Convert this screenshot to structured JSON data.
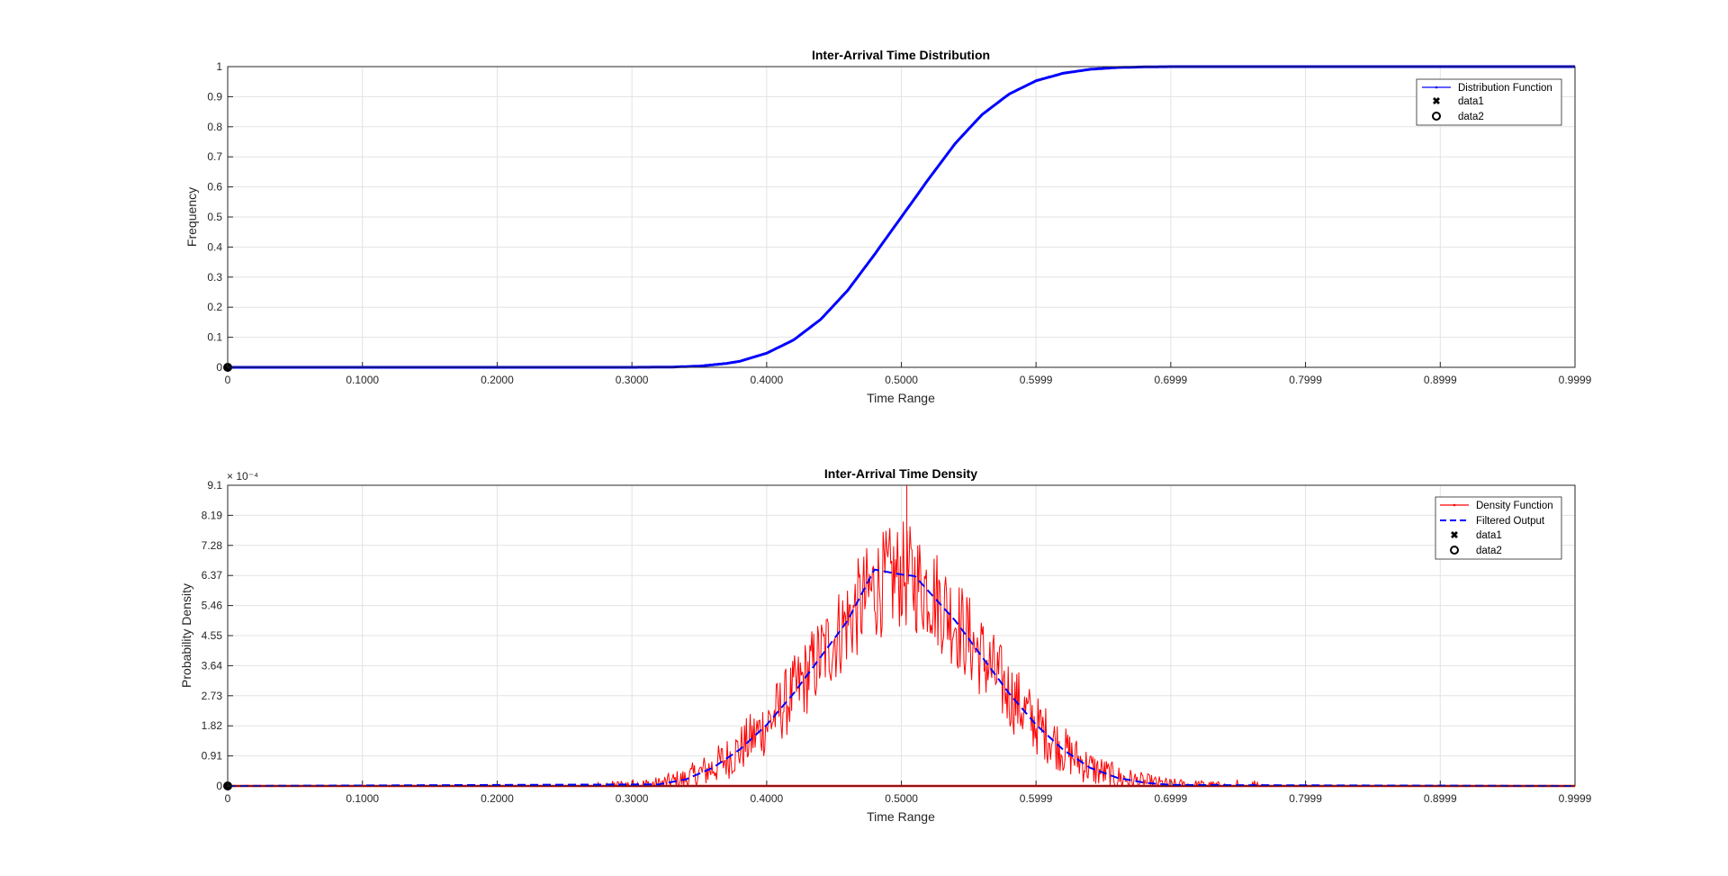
{
  "colors": {
    "distribution": "#0000ff",
    "density": "#ff0000",
    "filtered": "#0000ff",
    "grid": "#e3e3e3",
    "axis": "#262626"
  },
  "chart_data": [
    {
      "type": "line",
      "title": "Inter-Arrival Time Distribution",
      "xlabel": "Time Range",
      "ylabel": "Frequency",
      "xlim": [
        0,
        0.9999
      ],
      "ylim": [
        0,
        1
      ],
      "xticks": [
        0,
        0.1,
        0.2,
        0.3,
        0.4,
        0.5,
        0.5999,
        0.6999,
        0.7999,
        0.8999,
        0.9999
      ],
      "xtick_labels": [
        "0",
        "0.1000",
        "0.2000",
        "0.3000",
        "0.4000",
        "0.5000",
        "0.5999",
        "0.6999",
        "0.7999",
        "0.8999",
        "0.9999"
      ],
      "yticks": [
        0,
        0.1,
        0.2,
        0.3,
        0.4,
        0.5,
        0.6,
        0.7,
        0.8,
        0.9,
        1
      ],
      "ytick_labels": [
        "0",
        "0.1",
        "0.2",
        "0.3",
        "0.4",
        "0.5",
        "0.6",
        "0.7",
        "0.8",
        "0.9",
        "1"
      ],
      "grid": true,
      "legend_position": "top-right",
      "legend": [
        "Distribution Function",
        "data1",
        "data2"
      ],
      "series": [
        {
          "name": "Distribution Function",
          "x": [
            0,
            0.3,
            0.33,
            0.35,
            0.37,
            0.38,
            0.4,
            0.42,
            0.44,
            0.46,
            0.48,
            0.5,
            0.52,
            0.54,
            0.56,
            0.58,
            0.6,
            0.62,
            0.64,
            0.66,
            0.68,
            0.7,
            0.9999
          ],
          "y": [
            0,
            0,
            0.001,
            0.004,
            0.013,
            0.02,
            0.047,
            0.091,
            0.159,
            0.255,
            0.375,
            0.5,
            0.625,
            0.745,
            0.841,
            0.909,
            0.953,
            0.978,
            0.991,
            0.997,
            0.999,
            1,
            1
          ]
        }
      ],
      "markers": [
        {
          "name": "data2",
          "x": 0,
          "y": 0
        }
      ]
    },
    {
      "type": "line",
      "title": "Inter-Arrival Time Density",
      "xlabel": "Time Range",
      "ylabel": "Probability Density",
      "y_exponent_label": "× 10⁻⁴",
      "xlim": [
        0,
        0.9999
      ],
      "ylim": [
        0,
        9.1
      ],
      "xticks": [
        0,
        0.1,
        0.2,
        0.3,
        0.4,
        0.5,
        0.5999,
        0.6999,
        0.7999,
        0.8999,
        0.9999
      ],
      "xtick_labels": [
        "0",
        "0.1000",
        "0.2000",
        "0.3000",
        "0.4000",
        "0.5000",
        "0.5999",
        "0.6999",
        "0.7999",
        "0.8999",
        "0.9999"
      ],
      "yticks": [
        0,
        0.91,
        1.82,
        2.73,
        3.64,
        4.55,
        5.46,
        6.37,
        7.28,
        8.19,
        9.1
      ],
      "ytick_labels": [
        "0",
        "0.91",
        "1.82",
        "2.73",
        "3.64",
        "4.55",
        "5.46",
        "6.37",
        "7.28",
        "8.19",
        "9.1"
      ],
      "grid": true,
      "legend_position": "top-right",
      "legend": [
        "Density Function",
        "Filtered Output",
        "data1",
        "data2"
      ],
      "density_profile": {
        "x": [
          0,
          0.28,
          0.32,
          0.34,
          0.36,
          0.38,
          0.4,
          0.42,
          0.44,
          0.46,
          0.48,
          0.5,
          0.52,
          0.54,
          0.56,
          0.58,
          0.6,
          0.62,
          0.64,
          0.66,
          0.68,
          0.7,
          0.74,
          0.9999
        ],
        "mean": [
          0,
          0,
          0.05,
          0.2,
          0.55,
          1.1,
          1.85,
          2.8,
          3.9,
          5.0,
          6.0,
          6.4,
          6.0,
          5.0,
          3.9,
          2.8,
          1.85,
          1.1,
          0.55,
          0.25,
          0.1,
          0.03,
          0,
          0
        ],
        "peak": 9.1,
        "noise_amplitude": 1.3
      },
      "series": [
        {
          "name": "Filtered Output",
          "x": [
            0,
            0.32,
            0.34,
            0.36,
            0.38,
            0.4,
            0.42,
            0.44,
            0.46,
            0.48,
            0.5,
            0.51,
            0.52,
            0.54,
            0.56,
            0.58,
            0.6,
            0.62,
            0.64,
            0.66,
            0.68,
            0.7,
            0.9999
          ],
          "y": [
            0,
            0.05,
            0.2,
            0.55,
            1.1,
            1.85,
            2.8,
            3.9,
            5.0,
            6.55,
            6.4,
            6.35,
            5.9,
            5.0,
            3.9,
            2.8,
            1.85,
            1.1,
            0.55,
            0.25,
            0.1,
            0.03,
            0
          ]
        }
      ],
      "markers": [
        {
          "name": "data2",
          "x": 0,
          "y": 0
        }
      ]
    }
  ]
}
